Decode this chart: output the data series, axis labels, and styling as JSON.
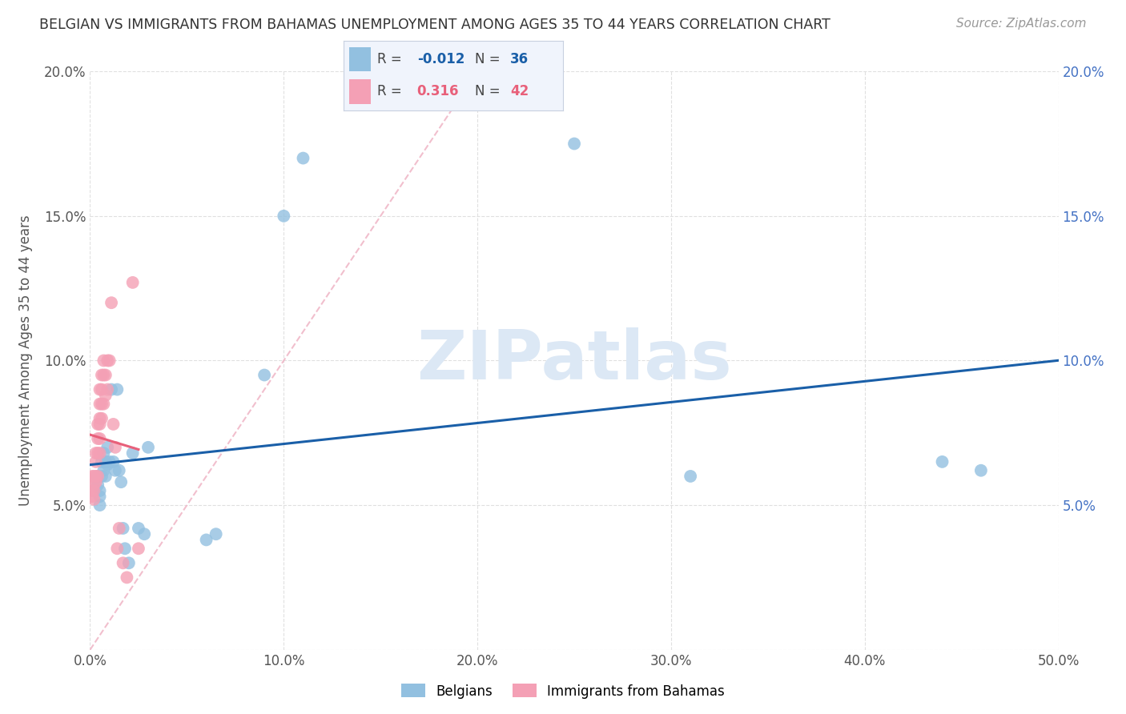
{
  "title": "BELGIAN VS IMMIGRANTS FROM BAHAMAS UNEMPLOYMENT AMONG AGES 35 TO 44 YEARS CORRELATION CHART",
  "source": "Source: ZipAtlas.com",
  "ylabel": "Unemployment Among Ages 35 to 44 years",
  "xlim": [
    0.0,
    0.5
  ],
  "ylim": [
    0.0,
    0.2
  ],
  "xticks": [
    0.0,
    0.1,
    0.2,
    0.3,
    0.4,
    0.5
  ],
  "yticks": [
    0.0,
    0.05,
    0.1,
    0.15,
    0.2
  ],
  "xtick_labels": [
    "0.0%",
    "10.0%",
    "20.0%",
    "30.0%",
    "40.0%",
    "50.0%"
  ],
  "ytick_labels_left": [
    "",
    "5.0%",
    "10.0%",
    "15.0%",
    "20.0%"
  ],
  "ytick_labels_right": [
    "",
    "5.0%",
    "10.0%",
    "15.0%",
    "20.0%"
  ],
  "blue_color": "#92c0e0",
  "pink_color": "#f4a0b5",
  "blue_line_color": "#1a5fa8",
  "pink_line_color": "#e8607a",
  "diagonal_color": "#f0b8c8",
  "watermark_text": "ZIPatlas",
  "watermark_color": "#dce8f5",
  "background_color": "#ffffff",
  "grid_color": "#e0e0e0",
  "title_color": "#333333",
  "axis_label_color": "#555555",
  "right_tick_color": "#4472c4",
  "belgians_R": -0.012,
  "belgians_N": 36,
  "bahamas_R": 0.316,
  "bahamas_N": 42,
  "belgians_x": [
    0.004,
    0.004,
    0.005,
    0.005,
    0.005,
    0.006,
    0.006,
    0.007,
    0.007,
    0.008,
    0.008,
    0.009,
    0.009,
    0.01,
    0.011,
    0.012,
    0.013,
    0.014,
    0.015,
    0.016,
    0.017,
    0.018,
    0.02,
    0.022,
    0.025,
    0.028,
    0.03,
    0.06,
    0.065,
    0.09,
    0.1,
    0.11,
    0.25,
    0.31,
    0.44,
    0.46
  ],
  "belgians_y": [
    0.06,
    0.057,
    0.055,
    0.053,
    0.05,
    0.06,
    0.065,
    0.068,
    0.062,
    0.065,
    0.06,
    0.07,
    0.064,
    0.065,
    0.09,
    0.065,
    0.062,
    0.09,
    0.062,
    0.058,
    0.042,
    0.035,
    0.03,
    0.068,
    0.042,
    0.04,
    0.07,
    0.038,
    0.04,
    0.095,
    0.15,
    0.17,
    0.175,
    0.06,
    0.065,
    0.062
  ],
  "bahamas_x": [
    0.001,
    0.001,
    0.001,
    0.002,
    0.002,
    0.002,
    0.002,
    0.003,
    0.003,
    0.003,
    0.003,
    0.004,
    0.004,
    0.004,
    0.004,
    0.005,
    0.005,
    0.005,
    0.005,
    0.005,
    0.005,
    0.006,
    0.006,
    0.006,
    0.006,
    0.007,
    0.007,
    0.007,
    0.008,
    0.008,
    0.009,
    0.009,
    0.01,
    0.011,
    0.012,
    0.013,
    0.014,
    0.015,
    0.017,
    0.019,
    0.022,
    0.025
  ],
  "bahamas_y": [
    0.055,
    0.06,
    0.053,
    0.057,
    0.06,
    0.055,
    0.052,
    0.068,
    0.065,
    0.06,
    0.058,
    0.078,
    0.073,
    0.068,
    0.06,
    0.09,
    0.085,
    0.08,
    0.078,
    0.073,
    0.068,
    0.095,
    0.09,
    0.085,
    0.08,
    0.1,
    0.095,
    0.085,
    0.095,
    0.088,
    0.1,
    0.09,
    0.1,
    0.12,
    0.078,
    0.07,
    0.035,
    0.042,
    0.03,
    0.025,
    0.127,
    0.035
  ]
}
